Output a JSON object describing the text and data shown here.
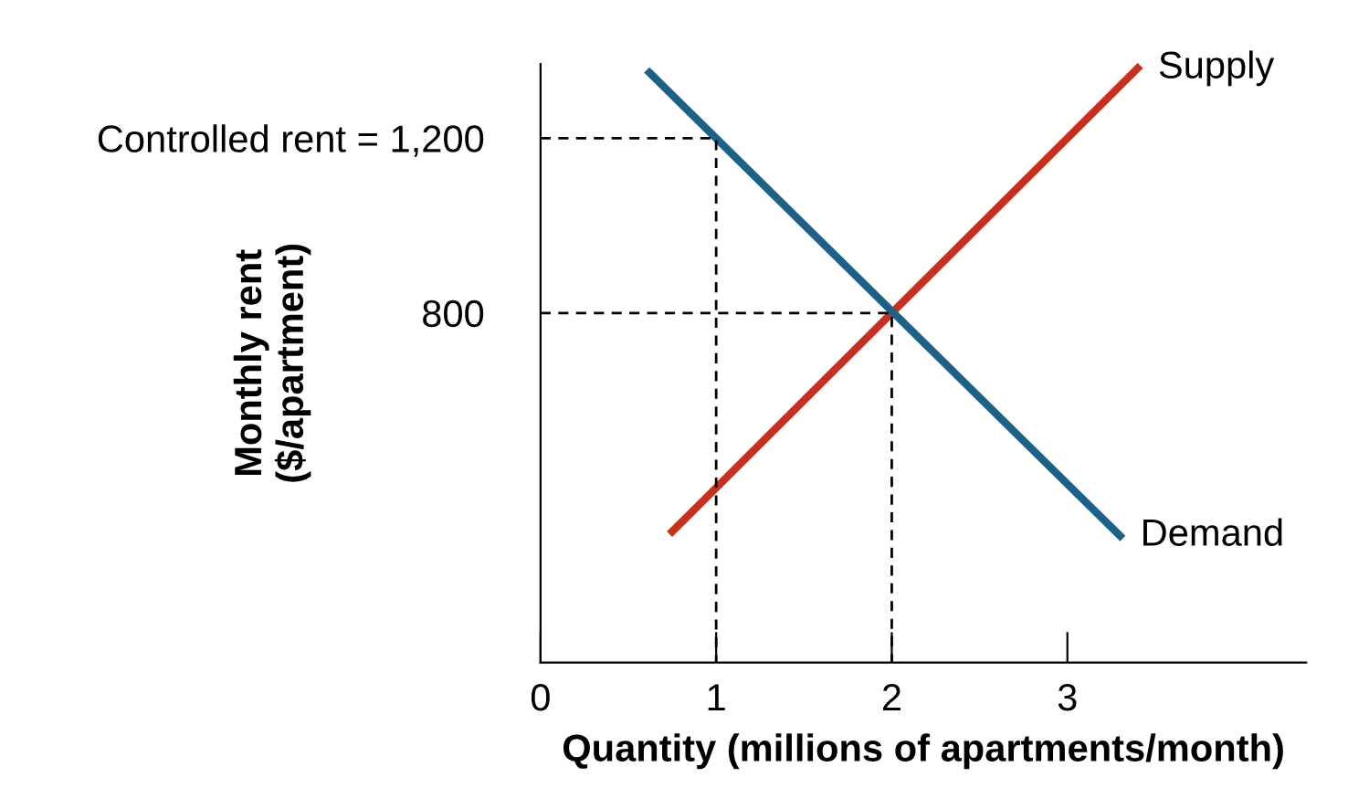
{
  "chart_data": {
    "type": "line",
    "xlabel": "Quantity (millions of apartments/month)",
    "ylabel": "Monthly rent\n($/apartment)",
    "xlim": [
      0,
      4.36
    ],
    "ylim": [
      0,
      1370
    ],
    "xticks": [
      0,
      1,
      2,
      3
    ],
    "yticks": [
      800,
      {
        "value": 1200,
        "label": "Controlled rent = 1,200"
      }
    ],
    "grid": false,
    "legend": false,
    "series": [
      {
        "name": "Supply",
        "color": "#c8301e",
        "x": [
          0.75,
          3.4
        ],
        "values": [
          300,
          1360
        ],
        "line_style": "solid"
      },
      {
        "name": "Demand",
        "color": "#1d6088",
        "x": [
          0.62,
          3.3
        ],
        "values": [
          1350,
          290
        ],
        "line_style": "solid"
      },
      {
        "color": "#000000",
        "x": [
          0,
          1,
          1
        ],
        "values": [
          1200,
          1200,
          0
        ],
        "line_style": "dashed"
      },
      {
        "color": "#000000",
        "x": [
          0,
          2,
          2
        ],
        "values": [
          800,
          800,
          0
        ],
        "line_style": "dashed"
      }
    ]
  }
}
